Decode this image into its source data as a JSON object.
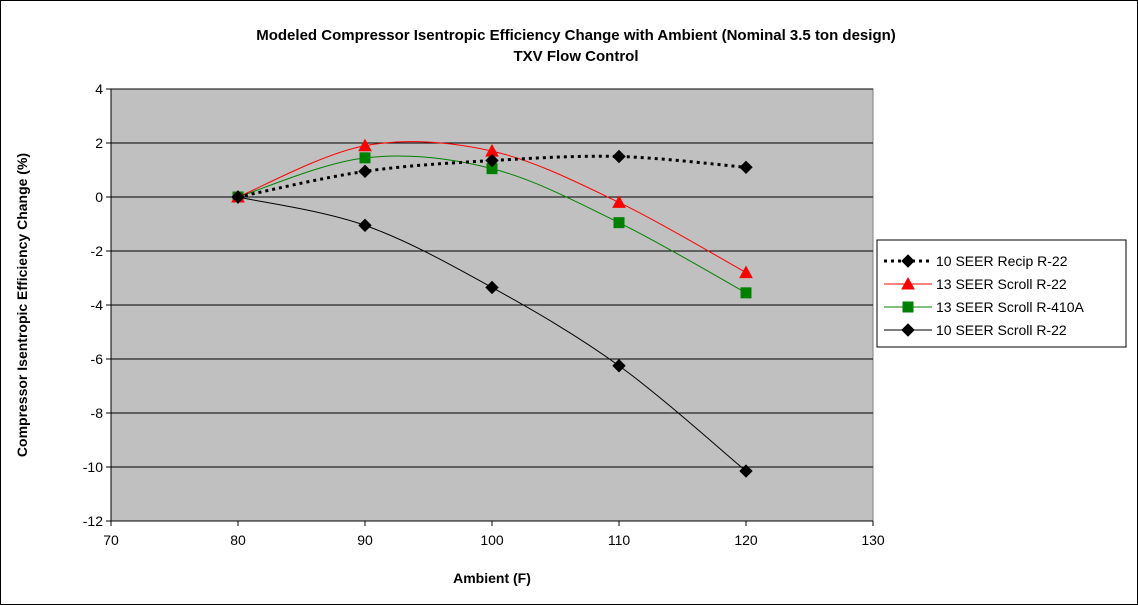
{
  "chart_data": {
    "type": "line",
    "title": "Modeled Compressor Isentropic Efficiency Change with Ambient (Nominal 3.5 ton design)",
    "subtitle": "TXV Flow Control",
    "xlabel": "Ambient (F)",
    "ylabel": "Compressor Isentropic Efficiency Change (%)",
    "xlim": [
      70,
      130
    ],
    "ylim": [
      -12,
      4
    ],
    "xticks": [
      "70",
      "80",
      "90",
      "100",
      "110",
      "120",
      "130"
    ],
    "yticks": [
      "4",
      "2",
      "0",
      "-2",
      "-4",
      "-6",
      "-8",
      "-10",
      "-12"
    ],
    "grid": "horizontal",
    "legend_position": "right",
    "plot_background": "#c0c0c0",
    "series": [
      {
        "name": "10 SEER Recip R-22",
        "x": [
          80,
          90,
          100,
          110,
          120
        ],
        "y": [
          0,
          0.95,
          1.35,
          1.5,
          1.1
        ],
        "color": "#000000",
        "line": "dotted-thick",
        "marker": "diamond"
      },
      {
        "name": "13 SEER Scroll R-22",
        "x": [
          80,
          90,
          100,
          110,
          120
        ],
        "y": [
          0,
          1.9,
          1.7,
          -0.2,
          -2.8
        ],
        "color": "#ff0000",
        "line": "solid",
        "marker": "triangle"
      },
      {
        "name": "13 SEER Scroll R-410A",
        "x": [
          80,
          90,
          100,
          110,
          120
        ],
        "y": [
          0,
          1.45,
          1.05,
          -0.95,
          -3.55
        ],
        "color": "#008000",
        "line": "solid",
        "marker": "square"
      },
      {
        "name": "10 SEER Scroll R-22",
        "x": [
          80,
          90,
          100,
          110,
          120
        ],
        "y": [
          0,
          -1.05,
          -3.35,
          -6.25,
          -10.15
        ],
        "color": "#000000",
        "line": "solid",
        "marker": "diamond"
      }
    ]
  }
}
